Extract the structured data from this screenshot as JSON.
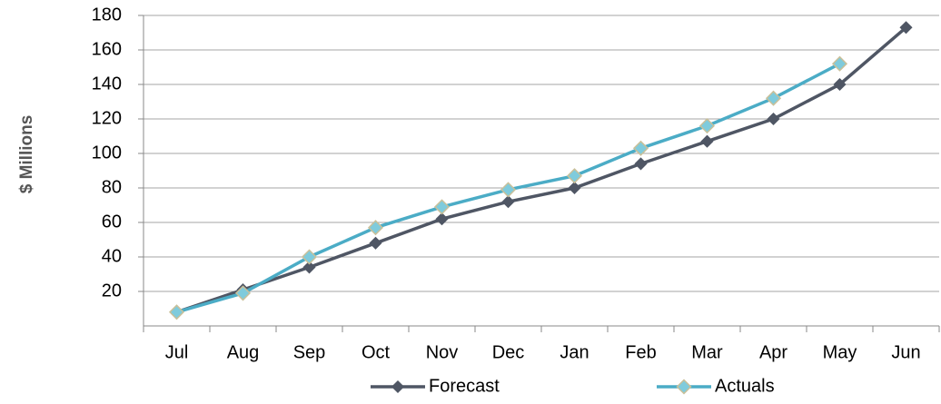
{
  "chart_data": {
    "type": "line",
    "y_label": "$ Millions",
    "categories": [
      "Jul",
      "Aug",
      "Sep",
      "Oct",
      "Nov",
      "Dec",
      "Jan",
      "Feb",
      "Mar",
      "Apr",
      "May",
      "Jun"
    ],
    "series": [
      {
        "name": "Forecast",
        "color": "#4f5664",
        "values": [
          8,
          21,
          34,
          48,
          62,
          72,
          80,
          94,
          107,
          120,
          140,
          173
        ]
      },
      {
        "name": "Actuals",
        "color": "#4bacc6",
        "values": [
          8,
          19,
          40,
          57,
          69,
          79,
          87,
          103,
          116,
          132,
          152,
          null
        ]
      }
    ],
    "ylim": [
      0,
      180
    ],
    "yticks": [
      20,
      40,
      60,
      80,
      100,
      120,
      140,
      160,
      180
    ],
    "grid": true,
    "legend": "bottom"
  }
}
